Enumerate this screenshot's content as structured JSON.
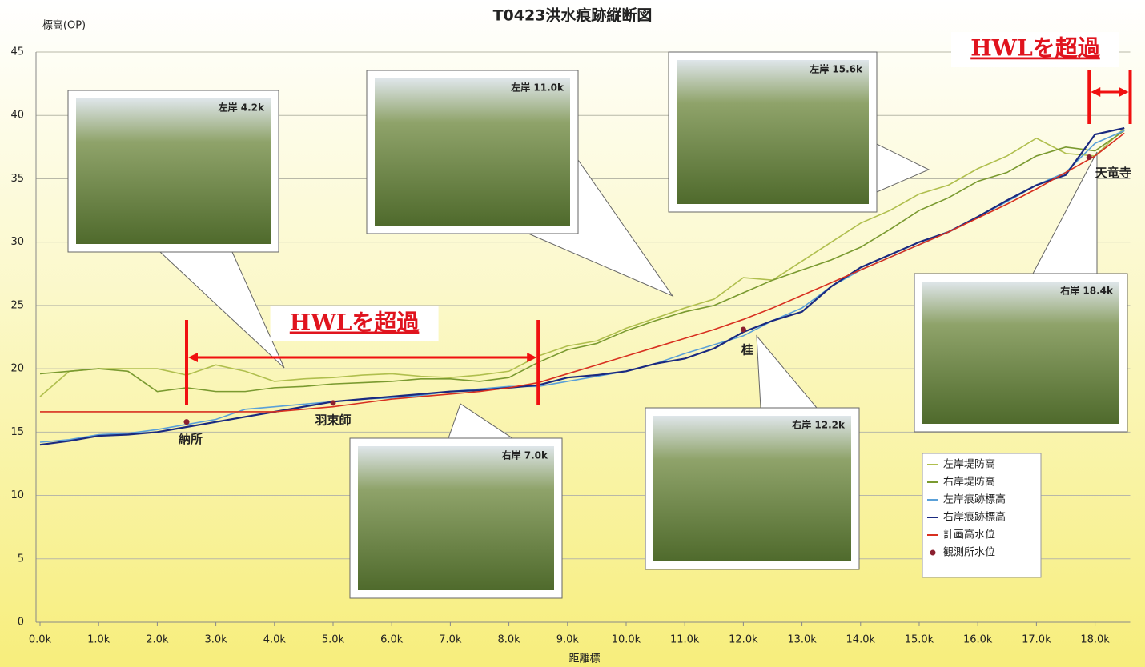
{
  "chart_data": {
    "type": "line",
    "title": "T0423洪水痕跡縦断図",
    "ylabel": "標高(OP)",
    "xlabel": "距離標",
    "x": [
      0,
      0.5,
      1,
      1.5,
      2,
      2.5,
      3,
      3.5,
      4,
      4.5,
      5,
      5.5,
      6,
      6.5,
      7,
      7.5,
      8,
      8.5,
      9,
      9.5,
      10,
      10.5,
      11,
      11.5,
      12,
      12.5,
      13,
      13.5,
      14,
      14.5,
      15,
      15.5,
      16,
      16.5,
      17,
      17.5,
      18,
      18.5
    ],
    "xlim": [
      0,
      18.6
    ],
    "xticks": [
      {
        "value": 0,
        "label": "0.0k"
      },
      {
        "value": 1,
        "label": "1.0k"
      },
      {
        "value": 2,
        "label": "2.0k"
      },
      {
        "value": 3,
        "label": "3.0k"
      },
      {
        "value": 4,
        "label": "4.0k"
      },
      {
        "value": 5,
        "label": "5.0k"
      },
      {
        "value": 6,
        "label": "6.0k"
      },
      {
        "value": 7,
        "label": "7.0k"
      },
      {
        "value": 8,
        "label": "8.0k"
      },
      {
        "value": 9,
        "label": "9.0k"
      },
      {
        "value": 10,
        "label": "10.0k"
      },
      {
        "value": 11,
        "label": "11.0k"
      },
      {
        "value": 12,
        "label": "12.0k"
      },
      {
        "value": 13,
        "label": "13.0k"
      },
      {
        "value": 14,
        "label": "14.0k"
      },
      {
        "value": 15,
        "label": "15.0k"
      },
      {
        "value": 16,
        "label": "16.0k"
      },
      {
        "value": 17,
        "label": "17.0k"
      },
      {
        "value": 18,
        "label": "18.0k"
      }
    ],
    "ylim": [
      0,
      45
    ],
    "yticks": [
      0,
      5,
      10,
      15,
      20,
      25,
      30,
      35,
      40,
      45
    ],
    "grid": true,
    "series": [
      {
        "name": "左岸堤防高",
        "color": "#b0bf4e",
        "values": [
          17.8,
          19.8,
          20.0,
          20.0,
          20.0,
          19.5,
          20.3,
          19.8,
          19.0,
          19.2,
          19.3,
          19.5,
          19.6,
          19.4,
          19.3,
          19.5,
          19.8,
          21.0,
          21.8,
          22.2,
          23.2,
          24.0,
          24.8,
          25.5,
          27.2,
          27.0,
          28.5,
          30.0,
          31.5,
          32.5,
          33.8,
          34.5,
          35.8,
          36.8,
          38.2,
          37.0,
          36.8,
          39.0
        ]
      },
      {
        "name": "右岸堤防高",
        "color": "#7a9a30",
        "values": [
          19.6,
          19.8,
          20.0,
          19.8,
          18.2,
          18.5,
          18.2,
          18.2,
          18.5,
          18.6,
          18.8,
          18.9,
          19.0,
          19.2,
          19.2,
          19.0,
          19.3,
          20.5,
          21.5,
          22.0,
          23.0,
          23.8,
          24.5,
          25.0,
          26.0,
          27.0,
          27.8,
          28.6,
          29.6,
          31.0,
          32.5,
          33.5,
          34.8,
          35.5,
          36.8,
          37.5,
          37.2,
          38.8
        ]
      },
      {
        "name": "左岸痕跡標高",
        "color": "#5aa0d8",
        "values": [
          14.2,
          14.4,
          14.8,
          14.9,
          15.2,
          15.6,
          16.0,
          16.8,
          17.0,
          17.2,
          17.4,
          17.6,
          17.7,
          17.9,
          18.2,
          18.4,
          18.6,
          18.6,
          19.0,
          19.4,
          19.8,
          20.4,
          21.2,
          21.9,
          22.6,
          23.8,
          24.8,
          26.5,
          27.8,
          28.8,
          29.8,
          30.8,
          32.0,
          33.2,
          34.5,
          35.5,
          37.8,
          38.8
        ]
      },
      {
        "name": "右岸痕跡標高",
        "color": "#1a2a80",
        "values": [
          14.0,
          14.3,
          14.7,
          14.8,
          15.0,
          15.4,
          15.8,
          16.2,
          16.6,
          17.0,
          17.4,
          17.6,
          17.8,
          18.0,
          18.2,
          18.3,
          18.5,
          18.7,
          19.3,
          19.5,
          19.8,
          20.4,
          20.8,
          21.6,
          22.9,
          23.8,
          24.5,
          26.5,
          28.0,
          29.0,
          30.0,
          30.8,
          32.0,
          33.3,
          34.5,
          35.3,
          38.5,
          39.0
        ]
      },
      {
        "name": "計画高水位",
        "color": "#d83020",
        "values": [
          16.6,
          16.6,
          16.6,
          16.6,
          16.6,
          16.6,
          16.6,
          16.6,
          16.6,
          16.8,
          17.0,
          17.3,
          17.6,
          17.8,
          18.0,
          18.2,
          18.5,
          18.9,
          19.6,
          20.3,
          21.0,
          21.7,
          22.4,
          23.1,
          23.9,
          24.8,
          25.8,
          26.8,
          27.8,
          28.8,
          29.8,
          30.8,
          31.9,
          33.0,
          34.2,
          35.5,
          36.8,
          38.6
        ]
      }
    ],
    "stations": {
      "name": "観測所水位",
      "color": "#8b2030",
      "x": [
        2.5,
        5.0,
        12.0,
        17.9
      ],
      "values": [
        15.8,
        17.3,
        23.1,
        36.7
      ],
      "labels": [
        "納所",
        "羽束師",
        "桂",
        "天竜寺"
      ]
    },
    "annotations": [
      {
        "text": "HWLを超過",
        "span": [
          2.5,
          8.5
        ]
      },
      {
        "text": "HWLを超過",
        "span": [
          17.9,
          18.6
        ]
      }
    ],
    "photos": [
      {
        "label": "左岸 4.2k"
      },
      {
        "label": "左岸 11.0k"
      },
      {
        "label": "左岸 15.6k"
      },
      {
        "label": "右岸 7.0k"
      },
      {
        "label": "右岸 12.2k"
      },
      {
        "label": "右岸 18.4k"
      }
    ]
  }
}
